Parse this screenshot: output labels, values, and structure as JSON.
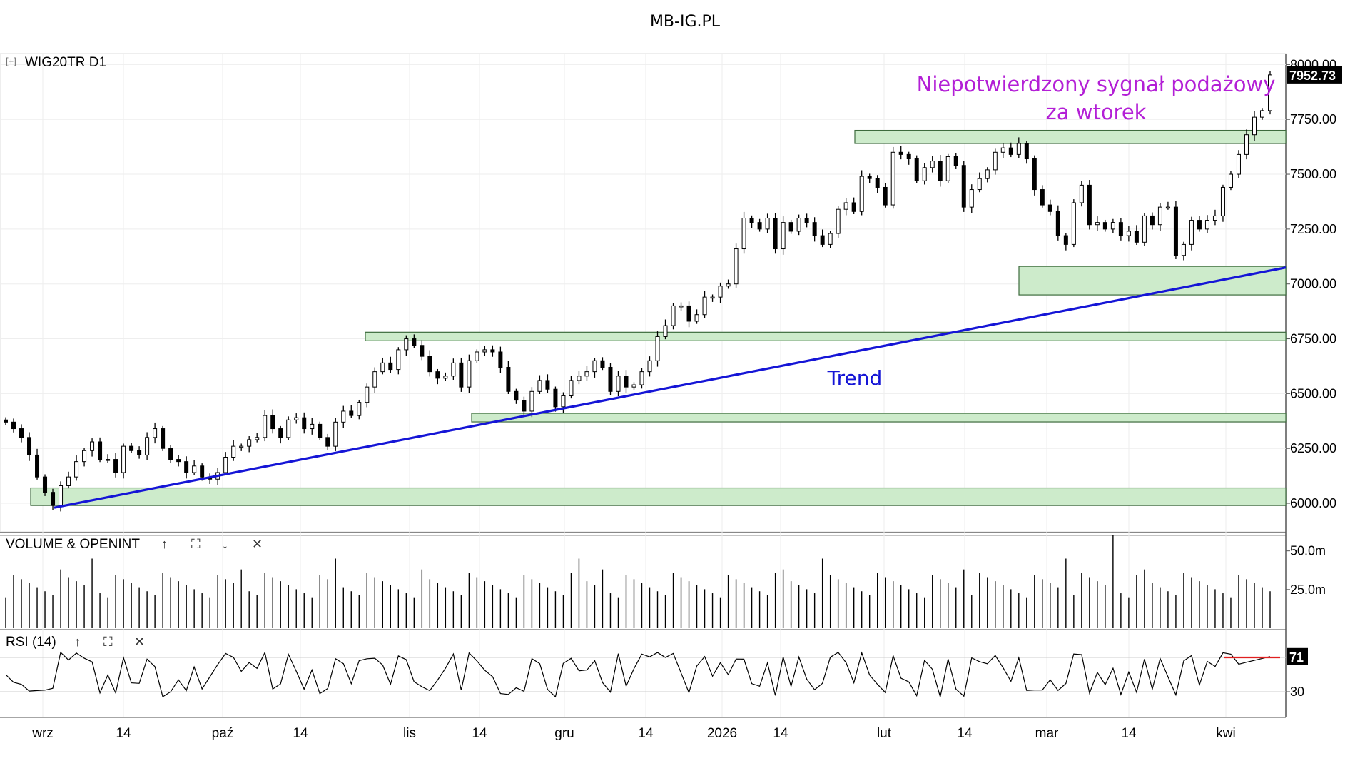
{
  "page_title": "MB-IG.PL",
  "price_panel": {
    "symbol_label": "WIG20TR  D1",
    "expand_marker": "[+]",
    "last_price_label": "7952.73",
    "annotation_signal_line1": "Niepotwierdzony sygnał podażowy",
    "annotation_signal_line2": "za wtorek",
    "annotation_trend": "Trend"
  },
  "volume_panel": {
    "label": "VOLUME & OPENINT",
    "ticks": [
      "50.0m",
      "25.0m"
    ]
  },
  "rsi_panel": {
    "label": "RSI (14)",
    "last_value_label": "71",
    "ticks": [
      "30"
    ]
  },
  "controls": {
    "up": "↑",
    "fullscreen": "⛶",
    "down": "↓",
    "close": "✕"
  },
  "x_axis_labels": [
    "wrz",
    "14",
    "paź",
    "14",
    "lis",
    "14",
    "gru",
    "14",
    "2026",
    "14",
    "lut",
    "14",
    "mar",
    "14",
    "kwi"
  ],
  "colors": {
    "up_candle": "#ffffff",
    "down_candle": "#000000",
    "zone_fill": "#cdebcb",
    "zone_stroke": "#3d6b3d",
    "trend_line": "#1515d6",
    "annotation_purple": "#b31fd6",
    "rsi_signal": "#e02020"
  },
  "chart_data": [
    {
      "type": "candlestick",
      "title": "WIG20TR D1",
      "ylim": [
        5870,
        8050
      ],
      "y_ticks": [
        6000,
        6250,
        6500,
        6750,
        7000,
        7250,
        7500,
        7750,
        8000
      ],
      "y_tick_labels": [
        "6000.00",
        "6250.00",
        "6500.00",
        "6750.00",
        "7000.00",
        "7250.00",
        "7500.00",
        "7750.00",
        "8000.00"
      ],
      "last_price": 7952.73,
      "close": [
        6370,
        6340,
        6300,
        6220,
        6120,
        6050,
        5990,
        6080,
        6120,
        6190,
        6240,
        6280,
        6200,
        6200,
        6140,
        6260,
        6240,
        6220,
        6300,
        6340,
        6250,
        6200,
        6190,
        6140,
        6170,
        6120,
        6110,
        6140,
        6210,
        6260,
        6260,
        6290,
        6300,
        6400,
        6340,
        6300,
        6380,
        6390,
        6340,
        6360,
        6300,
        6260,
        6370,
        6420,
        6400,
        6460,
        6530,
        6600,
        6640,
        6610,
        6700,
        6750,
        6720,
        6670,
        6600,
        6570,
        6580,
        6640,
        6530,
        6650,
        6690,
        6700,
        6690,
        6620,
        6510,
        6470,
        6420,
        6510,
        6560,
        6520,
        6440,
        6490,
        6560,
        6580,
        6600,
        6650,
        6620,
        6510,
        6580,
        6530,
        6540,
        6600,
        6650,
        6760,
        6810,
        6900,
        6900,
        6830,
        6860,
        6940,
        6940,
        6990,
        7000,
        7160,
        7300,
        7280,
        7250,
        7300,
        7160,
        7280,
        7240,
        7300,
        7280,
        7220,
        7180,
        7230,
        7340,
        7370,
        7330,
        7490,
        7480,
        7440,
        7360,
        7600,
        7590,
        7570,
        7470,
        7530,
        7560,
        7470,
        7580,
        7540,
        7350,
        7430,
        7480,
        7520,
        7600,
        7620,
        7590,
        7640,
        7570,
        7430,
        7360,
        7330,
        7220,
        7180,
        7370,
        7450,
        7270,
        7280,
        7250,
        7280,
        7220,
        7240,
        7190,
        7310,
        7270,
        7350,
        7350,
        7130,
        7180,
        7290,
        7250,
        7290,
        7310,
        7440,
        7500,
        7590,
        7680,
        7760,
        7790,
        7952.73
      ],
      "volume_ticks": [
        25000000,
        50000000
      ],
      "rsi_period": 14,
      "rsi_ticks": [
        30
      ],
      "rsi_last": 71,
      "x_labels": [
        "wrz",
        "14",
        "paź",
        "14",
        "lis",
        "14",
        "gru",
        "14",
        "2026",
        "14",
        "lut",
        "14",
        "mar",
        "14",
        "kwi"
      ],
      "support_resistance_zones": [
        {
          "low": 5990,
          "high": 6070
        },
        {
          "low": 6380,
          "high": 6410
        },
        {
          "low": 6760,
          "high": 6780
        },
        {
          "low": 6950,
          "high": 7080
        },
        {
          "low": 7640,
          "high": 7700
        }
      ],
      "trend_line": {
        "from": 5980,
        "to": 7075
      }
    }
  ]
}
